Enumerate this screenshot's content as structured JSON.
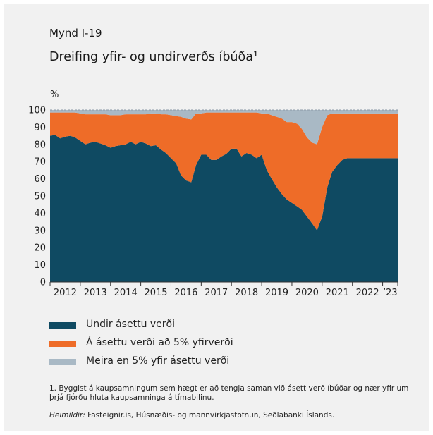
{
  "figure": {
    "label": "Mynd I-19",
    "title": "Dreifing yfir- og undirverðs íbúða¹"
  },
  "colors": {
    "below": "#0f4a62",
    "at_to_5": "#ee6c28",
    "above_5": "#a9b9c5",
    "panel": "#f1f1f1"
  },
  "chart_data": {
    "type": "area",
    "stacked": true,
    "ylabel": "%",
    "ylim": [
      0,
      100
    ],
    "yticks": [
      0,
      10,
      20,
      30,
      40,
      50,
      60,
      70,
      80,
      90,
      100
    ],
    "xlim": [
      2012,
      2023.5
    ],
    "xtick_labels": [
      "2012",
      "2013",
      "2014",
      "2015",
      "2016",
      "2017",
      "2018",
      "2019",
      "2020",
      "2021",
      "2022",
      "’23"
    ],
    "x": [
      2012.0,
      2012.17,
      2012.33,
      2012.5,
      2012.67,
      2012.83,
      2013.0,
      2013.17,
      2013.33,
      2013.5,
      2013.67,
      2013.83,
      2014.0,
      2014.17,
      2014.33,
      2014.5,
      2014.67,
      2014.83,
      2015.0,
      2015.17,
      2015.33,
      2015.5,
      2015.67,
      2015.83,
      2016.0,
      2016.17,
      2016.33,
      2016.5,
      2016.67,
      2016.83,
      2017.0,
      2017.17,
      2017.33,
      2017.5,
      2017.67,
      2017.83,
      2018.0,
      2018.17,
      2018.33,
      2018.5,
      2018.67,
      2018.83,
      2019.0,
      2019.17,
      2019.33,
      2019.5,
      2019.67,
      2019.83,
      2020.0,
      2020.17,
      2020.33,
      2020.5,
      2020.67,
      2020.83,
      2021.0,
      2021.17,
      2021.33,
      2021.5,
      2021.67,
      2021.83,
      2022.0,
      2022.17,
      2022.33,
      2022.5,
      2022.67,
      2022.83,
      2023.0,
      2023.17,
      2023.33,
      2023.5
    ],
    "series": [
      {
        "name": "Undir ásettu verði",
        "values": [
          85,
          85.5,
          83.5,
          84.5,
          85,
          84,
          82,
          80,
          81,
          81.5,
          80.5,
          79.5,
          78,
          79,
          79.5,
          80,
          81.5,
          80,
          81.5,
          80.5,
          79,
          79.5,
          77,
          75,
          72,
          69,
          62,
          59,
          58,
          68,
          74,
          74,
          71,
          71,
          73,
          74.5,
          77.5,
          77.5,
          73,
          75,
          74,
          72,
          74,
          65,
          60,
          55,
          51,
          48,
          46,
          44,
          42,
          38,
          34,
          30,
          38,
          55,
          64,
          68,
          71,
          72,
          72,
          72,
          72,
          72,
          72,
          72,
          72,
          72,
          72,
          72
        ]
      },
      {
        "name": "Á ásettu verði að 5% yfirverði",
        "values": [
          13.5,
          13,
          15,
          14,
          13.5,
          14.5,
          16,
          17.5,
          16.5,
          16,
          17,
          18,
          19,
          18,
          17.5,
          17.5,
          16,
          17.5,
          16,
          17,
          19,
          18.5,
          20.5,
          22.5,
          25,
          27.5,
          34,
          36,
          36.5,
          30,
          24,
          24.5,
          27.5,
          27.5,
          25.5,
          24,
          21,
          21,
          25.5,
          23.5,
          24.5,
          26.5,
          24,
          33,
          37,
          41,
          44,
          45,
          47,
          48,
          47,
          46,
          47,
          50,
          52,
          42,
          34,
          30,
          27,
          26,
          26,
          26,
          26,
          26,
          26,
          26,
          26,
          26,
          26,
          26
        ]
      },
      {
        "name": "Meira en 5% yfir ásettu verði",
        "values": [
          1.5,
          1.5,
          1.5,
          1.5,
          1.5,
          1.5,
          2,
          2.5,
          2.5,
          2.5,
          2.5,
          2.5,
          3,
          3,
          3,
          2.5,
          2.5,
          2.5,
          2.5,
          2.5,
          2,
          2,
          2.5,
          2.5,
          3,
          3.5,
          4,
          5,
          5.5,
          2,
          2,
          1.5,
          1.5,
          1.5,
          1.5,
          1.5,
          1.5,
          1.5,
          1.5,
          1.5,
          1.5,
          1.5,
          2,
          2,
          3,
          4,
          5,
          7,
          7,
          8,
          11,
          16,
          19,
          20,
          10,
          3,
          2,
          2,
          2,
          2,
          2,
          2,
          2,
          2,
          2,
          2,
          2,
          2,
          2,
          2
        ]
      }
    ],
    "legend_position": "bottom"
  },
  "legend": [
    {
      "label": "Undir ásettu verði"
    },
    {
      "label": "Á ásettu verði að 5% yfirverði"
    },
    {
      "label": "Meira en 5% yfir ásettu verði"
    }
  ],
  "notes": {
    "footnote": "1. Byggist á kaupsamningum sem hægt er að tengja saman við ásett verð íbúðar og nær yfir um þrjá fjórðu hluta kaupsamninga á tímabilinu.",
    "sources_label": "Heimildir:",
    "sources_text": " Fasteignir.is, Húsnæðis- og mannvirkjastofnun, Seðlabanki Íslands."
  }
}
